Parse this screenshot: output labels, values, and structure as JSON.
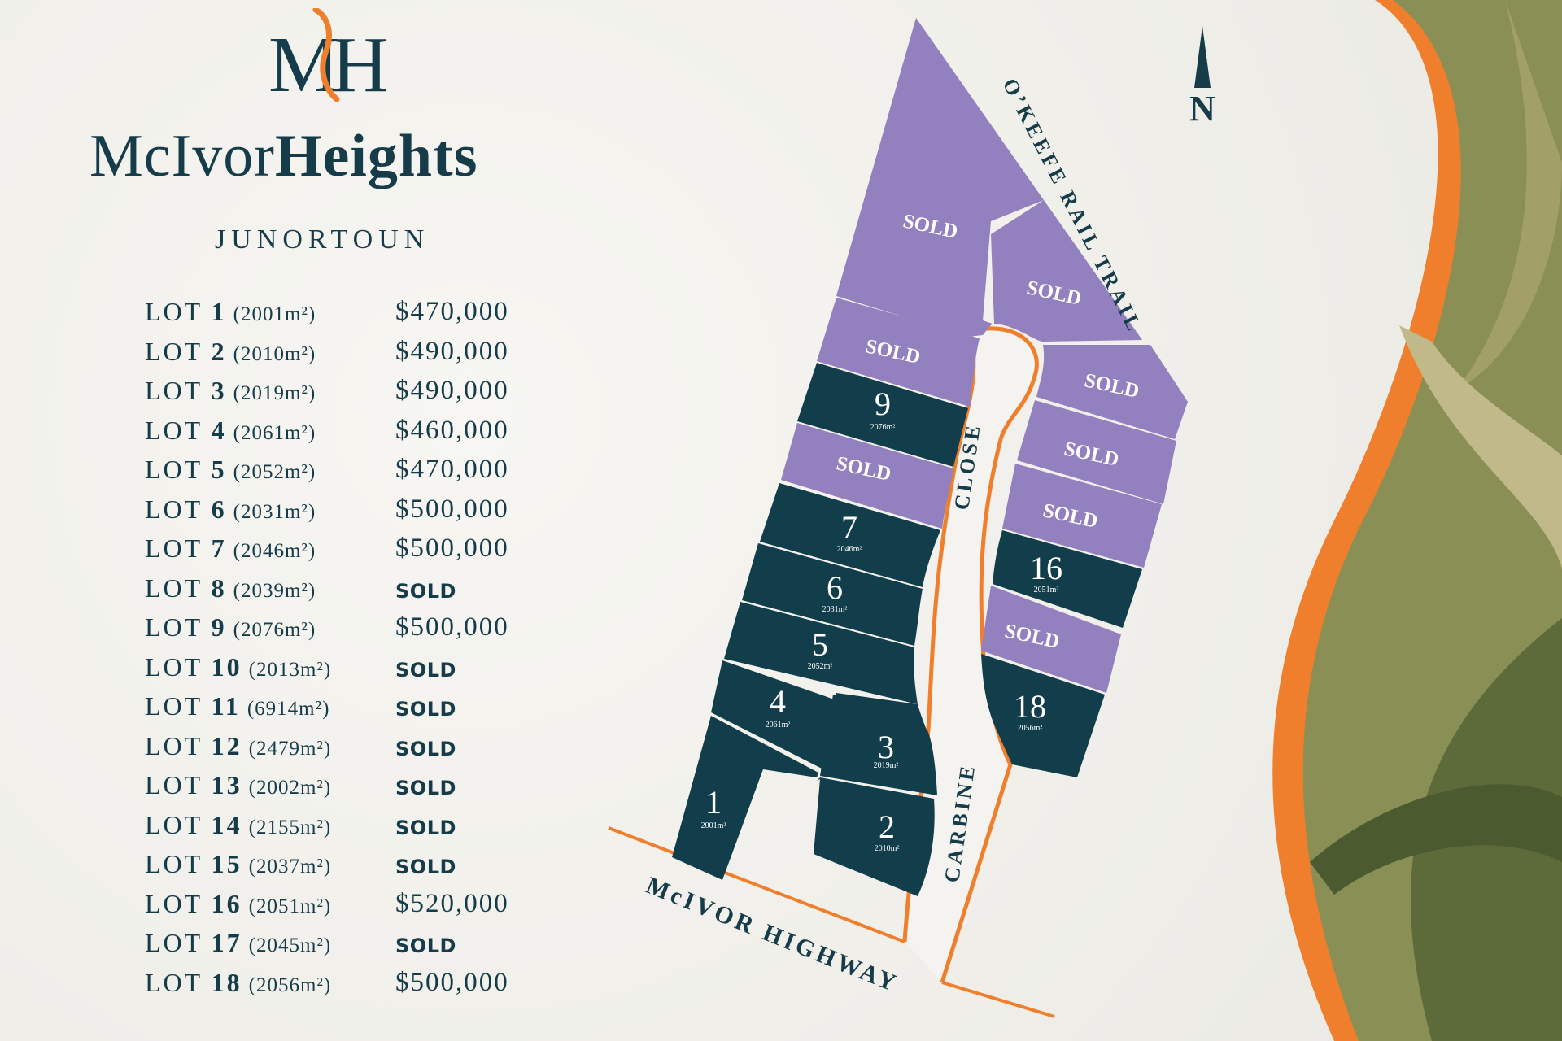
{
  "brand": {
    "logo_letters": "MH",
    "name_regular": "McIvor",
    "name_bold": "Heights",
    "locality": "JUNORTOUN"
  },
  "lots": [
    {
      "prefix": "LOT",
      "number": "1",
      "area": "(2001m²)",
      "status": "$470,000",
      "sold": false
    },
    {
      "prefix": "LOT",
      "number": "2",
      "area": "(2010m²)",
      "status": "$490,000",
      "sold": false
    },
    {
      "prefix": "LOT",
      "number": "3",
      "area": "(2019m²)",
      "status": "$490,000",
      "sold": false
    },
    {
      "prefix": "LOT",
      "number": "4",
      "area": "(2061m²)",
      "status": "$460,000",
      "sold": false
    },
    {
      "prefix": "LOT",
      "number": "5",
      "area": "(2052m²)",
      "status": "$470,000",
      "sold": false
    },
    {
      "prefix": "LOT",
      "number": "6",
      "area": "(2031m²)",
      "status": "$500,000",
      "sold": false
    },
    {
      "prefix": "LOT",
      "number": "7",
      "area": "(2046m²)",
      "status": "$500,000",
      "sold": false
    },
    {
      "prefix": "LOT",
      "number": "8",
      "area": "(2039m²)",
      "status": "SOLD",
      "sold": true
    },
    {
      "prefix": "LOT",
      "number": "9",
      "area": "(2076m²)",
      "status": "$500,000",
      "sold": false
    },
    {
      "prefix": "LOT",
      "number": "10",
      "area": "(2013m²)",
      "status": "SOLD",
      "sold": true
    },
    {
      "prefix": "LOT",
      "number": "11",
      "area": "(6914m²)",
      "status": "SOLD",
      "sold": true
    },
    {
      "prefix": "LOT",
      "number": "12",
      "area": "(2479m²)",
      "status": "SOLD",
      "sold": true
    },
    {
      "prefix": "LOT",
      "number": "13",
      "area": "(2002m²)",
      "status": "SOLD",
      "sold": true
    },
    {
      "prefix": "LOT",
      "number": "14",
      "area": "(2155m²)",
      "status": "SOLD",
      "sold": true
    },
    {
      "prefix": "LOT",
      "number": "15",
      "area": "(2037m²)",
      "status": "SOLD",
      "sold": true
    },
    {
      "prefix": "LOT",
      "number": "16",
      "area": "(2051m²)",
      "status": "$520,000",
      "sold": false
    },
    {
      "prefix": "LOT",
      "number": "17",
      "area": "(2045m²)",
      "status": "SOLD",
      "sold": true
    },
    {
      "prefix": "LOT",
      "number": "18",
      "area": "(2056m²)",
      "status": "$500,000",
      "sold": false
    }
  ],
  "map": {
    "north_label": "N",
    "sold_label": "SOLD",
    "roads": {
      "rail_trail": "O’KEEFE RAIL TRAIL",
      "highway": "McIVOR HIGHWAY",
      "close_a": "CLOSE",
      "close_b": "CARBINE"
    },
    "available_lots": [
      {
        "number": "9",
        "area": "2076m²"
      },
      {
        "number": "7",
        "area": "2046m²"
      },
      {
        "number": "6",
        "area": "2031m²"
      },
      {
        "number": "5",
        "area": "2052m²"
      },
      {
        "number": "4",
        "area": "2061m²"
      },
      {
        "number": "3",
        "area": "2019m²"
      },
      {
        "number": "1",
        "area": "2001m²"
      },
      {
        "number": "2",
        "area": "2010m²"
      },
      {
        "number": "16",
        "area": "2051m²"
      },
      {
        "number": "18",
        "area": "2056m²"
      }
    ]
  },
  "colors": {
    "sold": "#9380bf",
    "available": "#123d4a",
    "accent": "#ef7f2c",
    "text": "#163c4a",
    "leaf": "#6f7f3a"
  }
}
